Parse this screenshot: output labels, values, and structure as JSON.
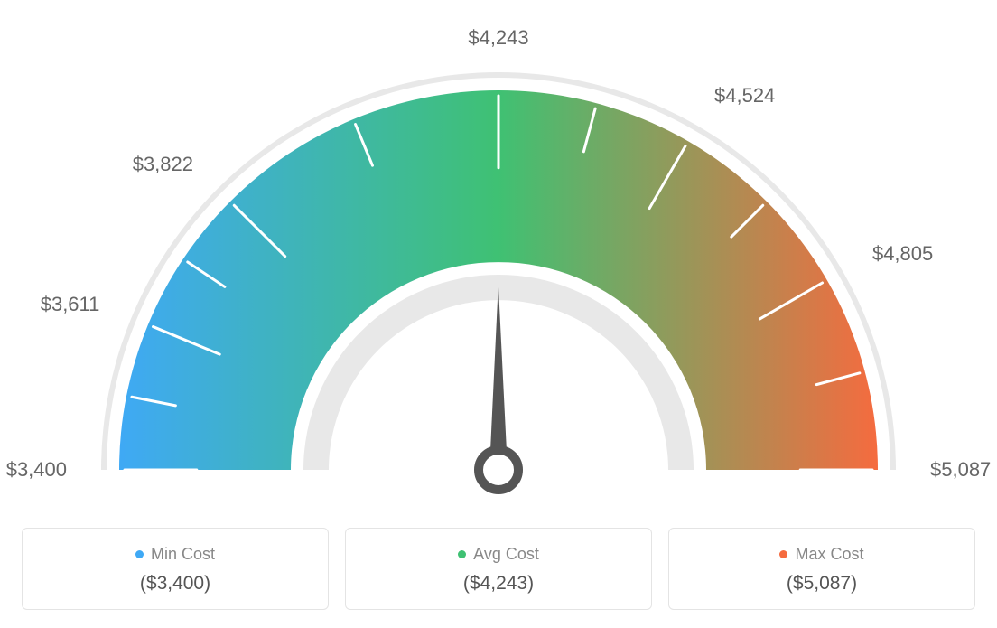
{
  "gauge": {
    "type": "gauge",
    "min_value": 3400,
    "max_value": 5087,
    "current_value": 4243,
    "tick_values": [
      3400,
      3611,
      3822,
      4243,
      4524,
      4805,
      5087
    ],
    "tick_labels": [
      "$3,400",
      "$3,611",
      "$3,822",
      "$4,243",
      "$4,524",
      "$4,805",
      "$5,087"
    ],
    "tick_angles_deg": [
      -90,
      -67.5,
      -45,
      0,
      30,
      60,
      90
    ],
    "minor_ticks_between": 1,
    "outer_radius": 420,
    "inner_radius": 230,
    "track_gap": 14,
    "background_color": "#ffffff",
    "track_color": "#e8e8e8",
    "colors": {
      "start": "#3fa9f5",
      "mid": "#3fc173",
      "end": "#f56b3f"
    },
    "tick_label_fontsize": 22,
    "tick_label_color": "#666666",
    "tick_stroke_color": "#ffffff",
    "tick_stroke_width": 3,
    "needle_color": "#555555",
    "needle_ring_stroke": 10
  },
  "legend": {
    "items": [
      {
        "key": "min",
        "label": "Min Cost",
        "value": "($3,400)",
        "dot_color": "#3fa9f5"
      },
      {
        "key": "avg",
        "label": "Avg Cost",
        "value": "($4,243)",
        "dot_color": "#3fc173"
      },
      {
        "key": "max",
        "label": "Max Cost",
        "value": "($5,087)",
        "dot_color": "#f56b3f"
      }
    ],
    "label_color": "#888888",
    "label_fontsize": 18,
    "value_color": "#555555",
    "value_fontsize": 21,
    "card_border_color": "#e4e4e4",
    "card_border_radius": 6
  }
}
